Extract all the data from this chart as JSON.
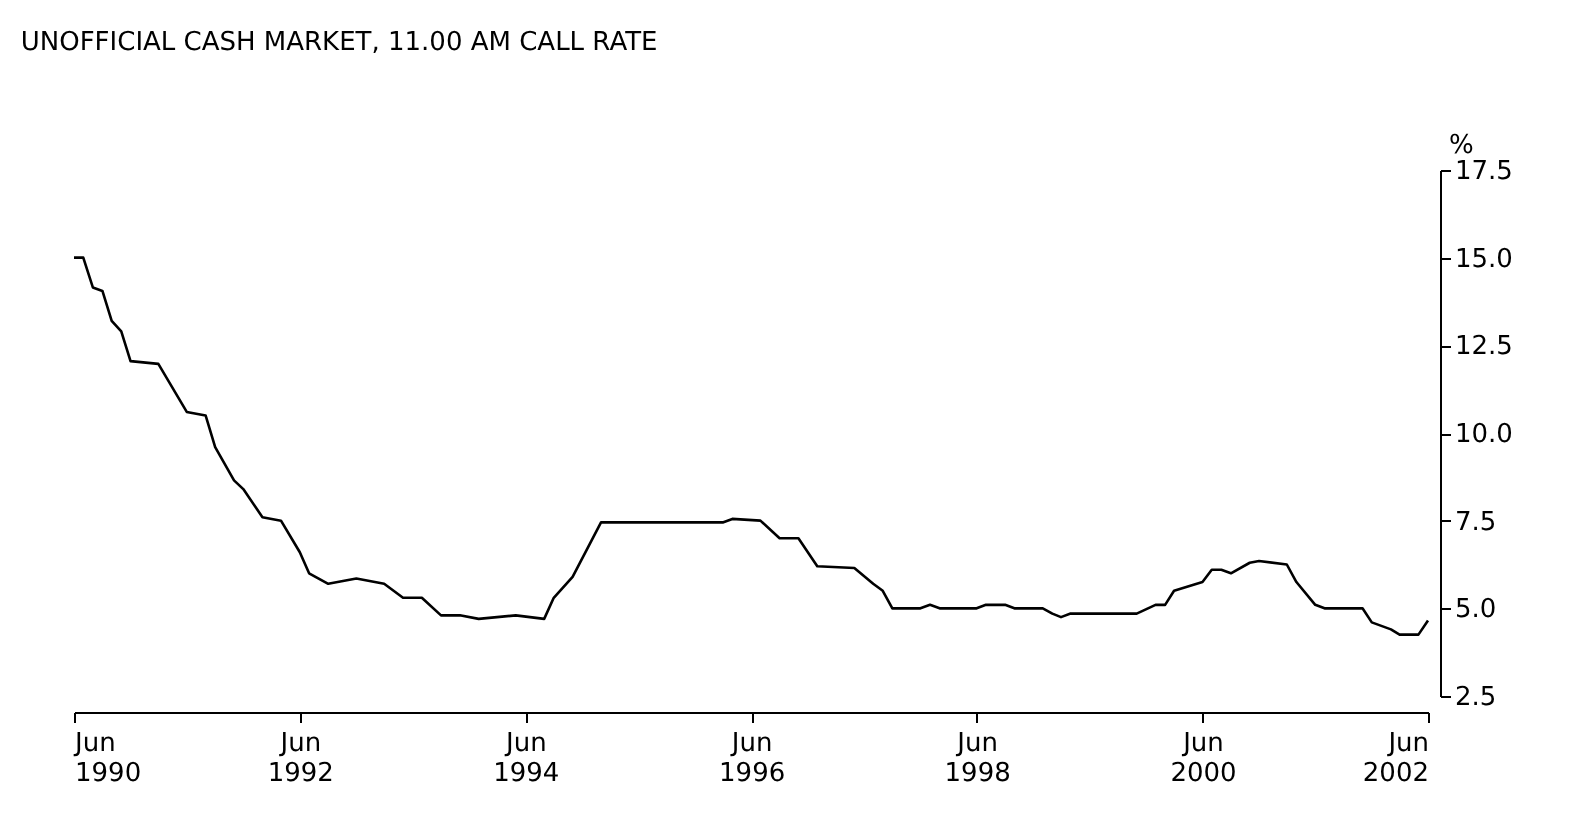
{
  "chart_data": {
    "type": "line",
    "title": "UNOFFICIAL CASH MARKET, 11.00 AM CALL RATE",
    "ylabel": "%",
    "x": [
      "1990-06",
      "1990-07",
      "1990-08",
      "1990-09",
      "1990-10",
      "1990-11",
      "1990-12",
      "1991-03",
      "1991-06",
      "1991-08",
      "1991-09",
      "1991-11",
      "1991-12",
      "1992-02",
      "1992-04",
      "1992-06",
      "1992-07",
      "1992-09",
      "1992-12",
      "1993-03",
      "1993-05",
      "1993-07",
      "1993-09",
      "1993-11",
      "1994-01",
      "1994-05",
      "1994-08",
      "1994-09",
      "1994-11",
      "1995-02",
      "1996-03",
      "1996-04",
      "1996-07",
      "1996-09",
      "1996-11",
      "1997-01",
      "1997-05",
      "1997-07",
      "1997-08",
      "1997-09",
      "1997-12",
      "1998-01",
      "1998-02",
      "1998-06",
      "1998-07",
      "1998-09",
      "1998-10",
      "1999-01",
      "1999-02",
      "1999-03",
      "1999-04",
      "1999-11",
      "2000-01",
      "2000-02",
      "2000-03",
      "2000-06",
      "2000-07",
      "2000-08",
      "2000-09",
      "2000-11",
      "2000-12",
      "2001-03",
      "2001-04",
      "2001-06",
      "2001-07",
      "2001-11",
      "2001-12",
      "2002-02",
      "2002-03",
      "2002-05",
      "2002-06"
    ],
    "series": [
      {
        "color": "#000000",
        "values": [
          15.0,
          15.0,
          14.15,
          14.05,
          13.2,
          12.9,
          12.05,
          11.97,
          10.6,
          10.5,
          9.6,
          8.65,
          8.4,
          7.6,
          7.5,
          6.6,
          6.0,
          5.7,
          5.85,
          5.7,
          5.3,
          5.3,
          4.8,
          4.8,
          4.7,
          4.8,
          4.7,
          5.3,
          5.9,
          7.45,
          7.45,
          7.55,
          7.5,
          7.0,
          7.0,
          6.2,
          6.15,
          5.7,
          5.5,
          5.0,
          5.0,
          5.1,
          5.0,
          5.0,
          5.1,
          5.1,
          5.0,
          5.0,
          4.85,
          4.75,
          4.85,
          4.85,
          5.1,
          5.1,
          5.5,
          5.75,
          6.1,
          6.1,
          6.0,
          6.3,
          6.35,
          6.25,
          5.75,
          5.1,
          5.0,
          5.0,
          4.6,
          4.4,
          4.25,
          4.25,
          4.65
        ]
      }
    ],
    "xlim": [
      "1990-06",
      "2002-06"
    ],
    "xticks": [
      {
        "value": "1990-06",
        "label": "Jun 1990"
      },
      {
        "value": "1992-06",
        "label": "Jun 1992"
      },
      {
        "value": "1994-06",
        "label": "Jun 1994"
      },
      {
        "value": "1996-06",
        "label": "Jun 1996"
      },
      {
        "value": "1998-06",
        "label": "Jun 1998"
      },
      {
        "value": "2000-06",
        "label": "Jun 2000"
      },
      {
        "value": "2002-06",
        "label": "Jun 2002"
      }
    ],
    "ylim": [
      2.5,
      17.5
    ],
    "yticks": [
      2.5,
      {
        "value": 5,
        "label": "5.0"
      },
      7.5,
      {
        "value": 10,
        "label": "10.0"
      },
      12.5,
      {
        "value": 15,
        "label": "15.0"
      },
      17.5
    ],
    "grid": false
  }
}
